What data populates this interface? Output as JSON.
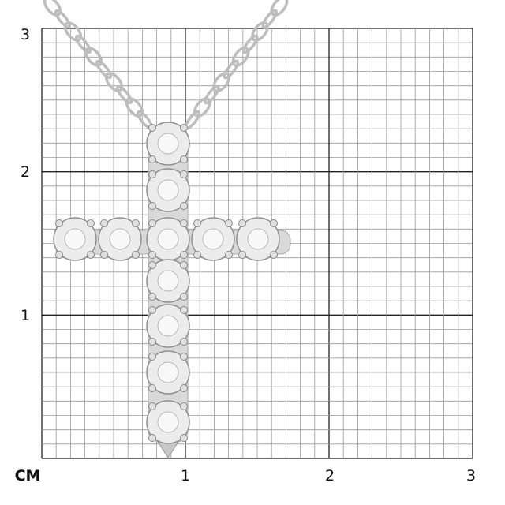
{
  "scale": {
    "unit_label": "СМ",
    "x_ticks": [
      "1",
      "2",
      "3"
    ],
    "y_ticks": [
      "1",
      "2",
      "3"
    ],
    "minor_divisions_per_unit": 10
  },
  "colors": {
    "grid_major": "#222222",
    "grid_minor": "#9a9a9a",
    "metal": "#cfcfcf"
  }
}
